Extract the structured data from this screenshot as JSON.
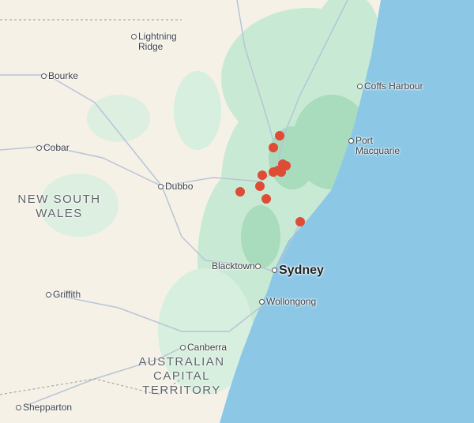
{
  "map": {
    "colors": {
      "land": "#f5f1e6",
      "forest": "#c8ead4",
      "forest_dark": "#a8dcbd",
      "water": "#8cc8e6",
      "road": "#b8c4d8",
      "marker": "#de4c36"
    },
    "places": [
      {
        "name": "Lightning\nRidge"
      },
      {
        "name": "Bourke"
      },
      {
        "name": "Coffs Harbour"
      },
      {
        "name": "Port\nMacquarie"
      },
      {
        "name": "Cobar"
      },
      {
        "name": "Dubbo"
      },
      {
        "name": "Blacktown"
      },
      {
        "name": "Sydney"
      },
      {
        "name": "Griffith"
      },
      {
        "name": "Wollongong"
      },
      {
        "name": "Canberra"
      },
      {
        "name": "Shepparton"
      }
    ],
    "regions": [
      {
        "name": "NEW SOUTH\nWALES"
      },
      {
        "name": "AUSTRALIAN\nCAPITAL\nTERRITORY"
      }
    ],
    "marker_count": 12
  }
}
